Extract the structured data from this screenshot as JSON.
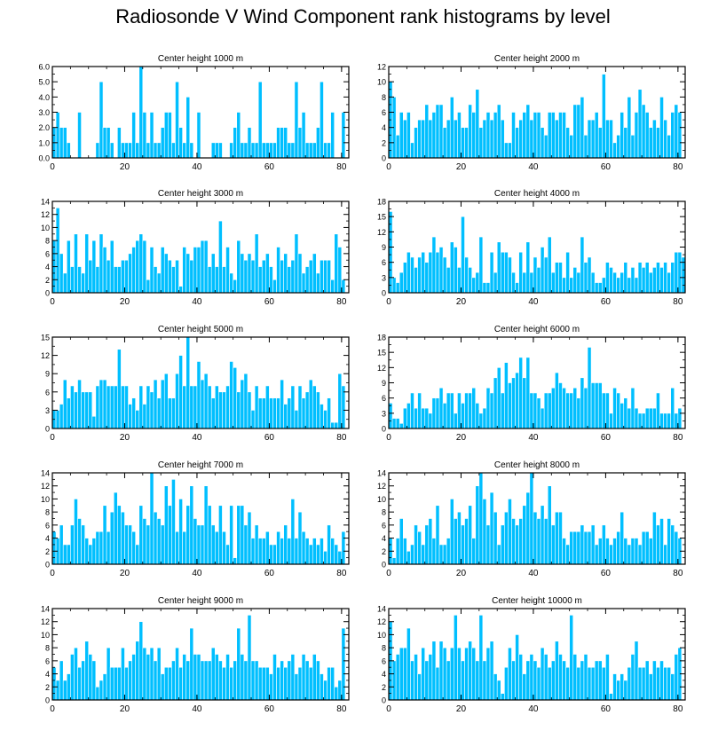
{
  "page_title": "Radiosonde V Wind Component rank histograms by level",
  "colors": {
    "bar": "#00bfff",
    "bar_stroke": "#ffffff",
    "axis": "#000000"
  },
  "chart_data": [
    {
      "type": "bar",
      "title": "Center height 1000 m",
      "xlim": [
        0,
        82
      ],
      "ylim": [
        0,
        6
      ],
      "xticks": [
        0,
        20,
        40,
        60,
        80
      ],
      "yticks": [
        0,
        1,
        2,
        3,
        4,
        5,
        6
      ],
      "ytick_labels": [
        "0.0",
        "1.0",
        "2.0",
        "3.0",
        "4.0",
        "5.0",
        "6.0"
      ],
      "values": [
        2,
        3,
        2,
        2,
        1,
        0,
        0,
        3,
        0,
        0,
        0,
        0,
        1,
        5,
        2,
        2,
        1,
        0,
        2,
        1,
        1,
        1,
        3,
        1,
        6,
        3,
        1,
        3,
        1,
        1,
        2,
        3,
        3,
        1,
        5,
        2,
        1,
        4,
        1,
        0,
        3,
        0,
        0,
        0,
        1,
        1,
        1,
        0,
        0,
        1,
        2,
        3,
        1,
        1,
        2,
        1,
        1,
        5,
        1,
        1,
        1,
        1,
        2,
        2,
        2,
        1,
        1,
        5,
        2,
        3,
        1,
        1,
        1,
        2,
        5,
        1,
        1,
        3,
        0,
        0,
        3
      ]
    },
    {
      "type": "bar",
      "title": "Center height 2000 m",
      "xlim": [
        0,
        82
      ],
      "ylim": [
        0,
        12
      ],
      "xticks": [
        0,
        20,
        40,
        60,
        80
      ],
      "yticks": [
        0,
        2,
        4,
        6,
        8,
        10,
        12
      ],
      "ytick_labels": [
        "0",
        "2",
        "4",
        "6",
        "8",
        "10",
        "12"
      ],
      "values": [
        10,
        8,
        3,
        6,
        5,
        6,
        2,
        4,
        5,
        5,
        7,
        5,
        6,
        7,
        7,
        4,
        5,
        8,
        5,
        6,
        4,
        4,
        7,
        6,
        9,
        4,
        5,
        6,
        5,
        6,
        7,
        5,
        2,
        2,
        6,
        4,
        5,
        6,
        7,
        5,
        6,
        6,
        4,
        3,
        6,
        6,
        5,
        6,
        6,
        4,
        3,
        7,
        7,
        8,
        3,
        5,
        5,
        6,
        4,
        11,
        5,
        5,
        2,
        3,
        6,
        4,
        8,
        3,
        6,
        9,
        7,
        6,
        4,
        5,
        4,
        8,
        5,
        3,
        6,
        7,
        6
      ]
    },
    {
      "type": "bar",
      "title": "Center height 3000 m",
      "xlim": [
        0,
        82
      ],
      "ylim": [
        0,
        14
      ],
      "xticks": [
        0,
        20,
        40,
        60,
        80
      ],
      "yticks": [
        0,
        2,
        4,
        6,
        8,
        10,
        12,
        14
      ],
      "ytick_labels": [
        "0",
        "2",
        "4",
        "6",
        "8",
        "10",
        "12",
        "14"
      ],
      "values": [
        8,
        13,
        6,
        3,
        8,
        4,
        9,
        4,
        3,
        9,
        5,
        8,
        4,
        9,
        7,
        5,
        8,
        4,
        4,
        5,
        5,
        6,
        7,
        8,
        9,
        8,
        2,
        7,
        4,
        3,
        7,
        6,
        5,
        4,
        5,
        1,
        7,
        6,
        5,
        7,
        7,
        8,
        8,
        4,
        6,
        4,
        11,
        4,
        7,
        3,
        2,
        8,
        6,
        5,
        6,
        5,
        9,
        4,
        5,
        6,
        4,
        2,
        7,
        5,
        6,
        4,
        5,
        9,
        6,
        3,
        4,
        5,
        6,
        3,
        5,
        5,
        5,
        2,
        9,
        7,
        2
      ]
    },
    {
      "type": "bar",
      "title": "Center height 4000 m",
      "xlim": [
        0,
        82
      ],
      "ylim": [
        0,
        18
      ],
      "xticks": [
        0,
        20,
        40,
        60,
        80
      ],
      "yticks": [
        0,
        3,
        6,
        9,
        12,
        15,
        18
      ],
      "ytick_labels": [
        "0",
        "3",
        "6",
        "9",
        "12",
        "15",
        "18"
      ],
      "values": [
        16,
        3,
        2,
        4,
        6,
        8,
        7,
        5,
        7,
        8,
        6,
        8,
        11,
        8,
        9,
        7,
        5,
        10,
        9,
        5,
        15,
        7,
        5,
        3,
        4,
        11,
        2,
        2,
        8,
        4,
        10,
        8,
        8,
        7,
        4,
        2,
        8,
        4,
        10,
        4,
        7,
        5,
        9,
        7,
        11,
        4,
        6,
        6,
        3,
        8,
        3,
        5,
        4,
        11,
        6,
        7,
        4,
        2,
        2,
        3,
        6,
        5,
        4,
        3,
        4,
        6,
        3,
        5,
        3,
        6,
        5,
        6,
        4,
        5,
        6,
        5,
        6,
        4,
        6,
        8,
        8,
        7
      ]
    },
    {
      "type": "bar",
      "title": "Center height 5000 m",
      "xlim": [
        0,
        82
      ],
      "ylim": [
        0,
        15
      ],
      "xticks": [
        0,
        20,
        40,
        60,
        80
      ],
      "yticks": [
        0,
        3,
        6,
        9,
        12,
        15
      ],
      "ytick_labels": [
        "0",
        "3",
        "6",
        "9",
        "12",
        "15"
      ],
      "values": [
        3,
        3,
        4,
        8,
        5,
        7,
        6,
        8,
        6,
        6,
        6,
        2,
        7,
        8,
        8,
        7,
        7,
        7,
        13,
        7,
        7,
        4,
        5,
        3,
        7,
        4,
        7,
        6,
        8,
        5,
        8,
        9,
        5,
        5,
        9,
        12,
        7,
        15,
        7,
        7,
        11,
        8,
        9,
        7,
        5,
        7,
        6,
        6,
        7,
        11,
        10,
        6,
        8,
        9,
        6,
        3,
        7,
        5,
        5,
        7,
        5,
        5,
        5,
        8,
        4,
        5,
        7,
        3,
        7,
        5,
        6,
        8,
        7,
        6,
        4,
        3,
        5,
        1,
        1,
        9,
        7
      ]
    },
    {
      "type": "bar",
      "title": "Center height 6000 m",
      "xlim": [
        0,
        82
      ],
      "ylim": [
        0,
        18
      ],
      "xticks": [
        0,
        20,
        40,
        60,
        80
      ],
      "yticks": [
        0,
        3,
        6,
        9,
        12,
        15,
        18
      ],
      "ytick_labels": [
        "0",
        "3",
        "6",
        "9",
        "12",
        "15",
        "18"
      ],
      "values": [
        5,
        2,
        2,
        1,
        4,
        5,
        7,
        4,
        7,
        4,
        4,
        3,
        6,
        6,
        8,
        5,
        7,
        7,
        3,
        7,
        5,
        7,
        7,
        8,
        5,
        3,
        4,
        8,
        7,
        10,
        12,
        7,
        13,
        9,
        10,
        11,
        14,
        10,
        14,
        7,
        7,
        6,
        4,
        7,
        7,
        8,
        11,
        9,
        8,
        7,
        7,
        8,
        6,
        10,
        8,
        16,
        9,
        9,
        9,
        7,
        7,
        3,
        8,
        7,
        5,
        6,
        4,
        8,
        4,
        3,
        3,
        4,
        4,
        4,
        7,
        3,
        3,
        3,
        8,
        3,
        4
      ]
    },
    {
      "type": "bar",
      "title": "Center height 7000 m",
      "xlim": [
        0,
        82
      ],
      "ylim": [
        0,
        14
      ],
      "xticks": [
        0,
        20,
        40,
        60,
        80
      ],
      "yticks": [
        0,
        2,
        4,
        6,
        8,
        10,
        12,
        14
      ],
      "ytick_labels": [
        "0",
        "2",
        "4",
        "6",
        "8",
        "10",
        "12",
        "14"
      ],
      "values": [
        5,
        4,
        6,
        3,
        3,
        6,
        10,
        7,
        6,
        4,
        3,
        4,
        5,
        5,
        9,
        5,
        8,
        11,
        9,
        8,
        6,
        6,
        5,
        3,
        9,
        7,
        6,
        14,
        8,
        7,
        6,
        12,
        9,
        13,
        5,
        10,
        5,
        9,
        12,
        7,
        6,
        6,
        12,
        9,
        6,
        5,
        9,
        5,
        3,
        9,
        1,
        9,
        9,
        6,
        8,
        4,
        6,
        4,
        4,
        5,
        3,
        3,
        5,
        4,
        6,
        4,
        10,
        4,
        8,
        5,
        4,
        3,
        4,
        3,
        4,
        2,
        6,
        4,
        3,
        2,
        5
      ]
    },
    {
      "type": "bar",
      "title": "Center height 8000 m",
      "xlim": [
        0,
        82
      ],
      "ylim": [
        0,
        14
      ],
      "xticks": [
        0,
        20,
        40,
        60,
        80
      ],
      "yticks": [
        0,
        2,
        4,
        6,
        8,
        10,
        12,
        14
      ],
      "ytick_labels": [
        "0",
        "2",
        "4",
        "6",
        "8",
        "10",
        "12",
        "14"
      ],
      "values": [
        4,
        1,
        4,
        7,
        4,
        2,
        3,
        6,
        5,
        3,
        6,
        7,
        4,
        9,
        3,
        3,
        4,
        10,
        7,
        8,
        6,
        7,
        9,
        4,
        12,
        14,
        10,
        6,
        11,
        8,
        3,
        6,
        8,
        10,
        7,
        6,
        7,
        9,
        11,
        14,
        8,
        7,
        9,
        7,
        12,
        6,
        8,
        8,
        4,
        3,
        5,
        5,
        5,
        6,
        5,
        5,
        6,
        3,
        4,
        6,
        4,
        3,
        4,
        5,
        8,
        4,
        3,
        4,
        4,
        3,
        5,
        5,
        4,
        8,
        6,
        7,
        3,
        7,
        6,
        5,
        4
      ]
    },
    {
      "type": "bar",
      "title": "Center height 9000 m",
      "xlim": [
        0,
        82
      ],
      "ylim": [
        0,
        14
      ],
      "xticks": [
        0,
        20,
        40,
        60,
        80
      ],
      "yticks": [
        0,
        2,
        4,
        6,
        8,
        10,
        12,
        14
      ],
      "ytick_labels": [
        "0",
        "2",
        "4",
        "6",
        "8",
        "10",
        "12",
        "14"
      ],
      "values": [
        5,
        3,
        6,
        3,
        4,
        7,
        8,
        5,
        6,
        9,
        7,
        6,
        2,
        3,
        4,
        8,
        5,
        5,
        5,
        8,
        5,
        6,
        7,
        9,
        12,
        8,
        7,
        8,
        6,
        8,
        4,
        5,
        5,
        6,
        8,
        5,
        7,
        6,
        11,
        7,
        7,
        6,
        6,
        6,
        8,
        7,
        6,
        5,
        7,
        5,
        6,
        11,
        7,
        6,
        13,
        6,
        6,
        5,
        5,
        5,
        4,
        7,
        5,
        6,
        5,
        6,
        7,
        4,
        5,
        7,
        6,
        5,
        7,
        6,
        4,
        3,
        5,
        5,
        2,
        3,
        11
      ]
    },
    {
      "type": "bar",
      "title": "Center height 10000 m",
      "xlim": [
        0,
        82
      ],
      "ylim": [
        0,
        14
      ],
      "xticks": [
        0,
        20,
        40,
        60,
        80
      ],
      "yticks": [
        0,
        2,
        4,
        6,
        8,
        10,
        12,
        14
      ],
      "ytick_labels": [
        "0",
        "2",
        "4",
        "6",
        "8",
        "10",
        "12",
        "14"
      ],
      "values": [
        12,
        6,
        7,
        8,
        8,
        11,
        6,
        7,
        4,
        8,
        6,
        7,
        9,
        5,
        9,
        8,
        6,
        8,
        13,
        8,
        6,
        8,
        9,
        8,
        6,
        13,
        6,
        8,
        9,
        4,
        3,
        1,
        5,
        8,
        6,
        10,
        7,
        4,
        6,
        7,
        6,
        5,
        8,
        7,
        5,
        6,
        9,
        7,
        6,
        5,
        13,
        7,
        5,
        6,
        7,
        5,
        5,
        6,
        6,
        5,
        7,
        1,
        4,
        3,
        4,
        3,
        5,
        7,
        9,
        5,
        5,
        6,
        4,
        6,
        5,
        6,
        5,
        5,
        4,
        7,
        8
      ]
    }
  ]
}
